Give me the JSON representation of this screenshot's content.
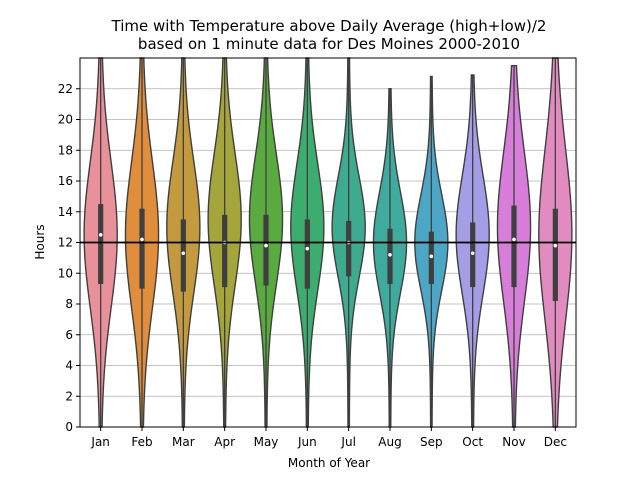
{
  "chart_data": {
    "type": "violin",
    "title_line1": "Time with Temperature above Daily Average (high+low)/2",
    "title_line2": "based on 1 minute data for Des Moines 2000-2010",
    "xlabel": "Month of Year",
    "ylabel": "Hours",
    "ylim": [
      0,
      24
    ],
    "yticks": [
      0,
      2,
      4,
      6,
      8,
      10,
      12,
      14,
      16,
      18,
      20,
      22
    ],
    "grid": true,
    "reference_line": 12,
    "categories": [
      "Jan",
      "Feb",
      "Mar",
      "Apr",
      "May",
      "Jun",
      "Jul",
      "Aug",
      "Sep",
      "Oct",
      "Nov",
      "Dec"
    ],
    "colors": [
      "#e8919b",
      "#e08d3c",
      "#c39a3d",
      "#a4a53b",
      "#5aab3f",
      "#3cad6e",
      "#3eaa8f",
      "#3eab9e",
      "#4ca6c6",
      "#a39ee6",
      "#d67ed9",
      "#e28bc0"
    ],
    "series": [
      {
        "name": "Jan",
        "min": 0.0,
        "q1": 9.3,
        "median": 12.5,
        "q3": 14.5,
        "max": 24.0,
        "mode": 12.5
      },
      {
        "name": "Feb",
        "min": 0.0,
        "q1": 9.0,
        "median": 12.2,
        "q3": 14.2,
        "max": 24.0,
        "mode": 12.5
      },
      {
        "name": "Mar",
        "min": 0.0,
        "q1": 8.8,
        "median": 11.3,
        "q3": 13.5,
        "max": 24.0,
        "mode": 13.0
      },
      {
        "name": "Apr",
        "min": 0.0,
        "q1": 9.1,
        "median": 12.0,
        "q3": 13.8,
        "max": 24.0,
        "mode": 13.5
      },
      {
        "name": "May",
        "min": 0.0,
        "q1": 9.2,
        "median": 11.8,
        "q3": 13.8,
        "max": 24.0,
        "mode": 13.5
      },
      {
        "name": "Jun",
        "min": 0.0,
        "q1": 9.0,
        "median": 11.6,
        "q3": 13.5,
        "max": 24.0,
        "mode": 13.0
      },
      {
        "name": "Jul",
        "min": 0.0,
        "q1": 9.8,
        "median": 12.0,
        "q3": 13.4,
        "max": 24.0,
        "mode": 13.0
      },
      {
        "name": "Aug",
        "min": 0.0,
        "q1": 9.3,
        "median": 11.2,
        "q3": 12.9,
        "max": 22.0,
        "mode": 12.0
      },
      {
        "name": "Sep",
        "min": 0.0,
        "q1": 9.3,
        "median": 11.1,
        "q3": 12.7,
        "max": 22.8,
        "mode": 12.0
      },
      {
        "name": "Oct",
        "min": 0.0,
        "q1": 9.1,
        "median": 11.3,
        "q3": 13.3,
        "max": 22.9,
        "mode": 12.5
      },
      {
        "name": "Nov",
        "min": 0.0,
        "q1": 9.1,
        "median": 12.2,
        "q3": 14.4,
        "max": 23.5,
        "mode": 13.0
      },
      {
        "name": "Dec",
        "min": 0.0,
        "q1": 8.2,
        "median": 11.8,
        "q3": 14.2,
        "max": 24.0,
        "mode": 12.5
      }
    ]
  }
}
